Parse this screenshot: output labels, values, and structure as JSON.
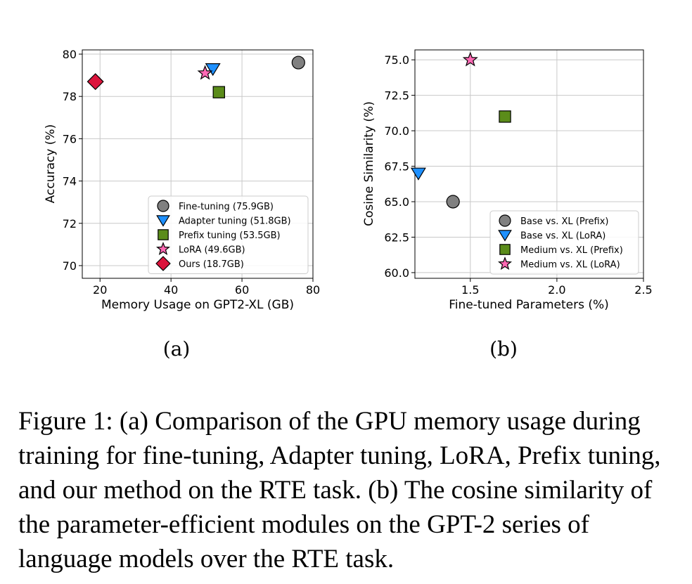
{
  "caption": "Figure 1: (a) Comparison of the GPU memory usage during training for fine-tuning, Adapter tuning, LoRA, Prefix tuning, and our method on the RTE task. (b) The cosine similarity of the parameter-efficient modules on the GPT-2 series of language models over the RTE task.",
  "chart_data": [
    {
      "type": "scatter",
      "sublabel": "(a)",
      "xlabel": "Memory Usage on GPT2-XL (GB)",
      "ylabel": "Accuracy (%)",
      "xlim": [
        15,
        80
      ],
      "ylim": [
        69.4,
        80.2
      ],
      "xticks": [
        20,
        40,
        60,
        80
      ],
      "yticks": [
        70,
        72,
        74,
        76,
        78,
        80
      ],
      "grid": true,
      "legend_position": "lower-right",
      "points": [
        {
          "name": "Fine-tuning (75.9GB)",
          "x": 75.9,
          "y": 79.6,
          "marker": "circle",
          "color": "#808080"
        },
        {
          "name": "Adapter tuning (51.8GB)",
          "x": 51.8,
          "y": 79.3,
          "marker": "triangle-down",
          "color": "#1e90ff"
        },
        {
          "name": "Prefix tuning (53.5GB)",
          "x": 53.5,
          "y": 78.2,
          "marker": "square",
          "color": "#5b8c1a"
        },
        {
          "name": "LoRA (49.6GB)",
          "x": 49.6,
          "y": 79.1,
          "marker": "star",
          "color": "#ff69b4"
        },
        {
          "name": "Ours (18.7GB)",
          "x": 18.7,
          "y": 78.7,
          "marker": "diamond",
          "color": "#dc143c"
        }
      ]
    },
    {
      "type": "scatter",
      "sublabel": "(b)",
      "xlabel": "Fine-tuned Parameters (%)",
      "ylabel": "Cosine Similarity (%)",
      "xlim": [
        1.18,
        2.5
      ],
      "ylim": [
        59.6,
        75.7
      ],
      "xticks": [
        1.5,
        2.0,
        2.5
      ],
      "xtick_labels": [
        "1.5",
        "2.0",
        "2.5"
      ],
      "yticks": [
        60.0,
        62.5,
        65.0,
        67.5,
        70.0,
        72.5,
        75.0
      ],
      "ytick_labels": [
        "60.0",
        "62.5",
        "65.0",
        "67.5",
        "70.0",
        "72.5",
        "75.0"
      ],
      "grid": true,
      "legend_position": "lower-right",
      "points": [
        {
          "name": "Base vs. XL (Prefix)",
          "x": 1.4,
          "y": 65.0,
          "marker": "circle",
          "color": "#808080"
        },
        {
          "name": "Base vs. XL (LoRA)",
          "x": 1.2,
          "y": 67.0,
          "marker": "triangle-down",
          "color": "#1e90ff"
        },
        {
          "name": "Medium vs. XL (Prefix)",
          "x": 1.7,
          "y": 71.0,
          "marker": "square",
          "color": "#5b8c1a"
        },
        {
          "name": "Medium vs. XL (LoRA)",
          "x": 1.5,
          "y": 75.0,
          "marker": "star",
          "color": "#ff69b4"
        }
      ]
    }
  ]
}
